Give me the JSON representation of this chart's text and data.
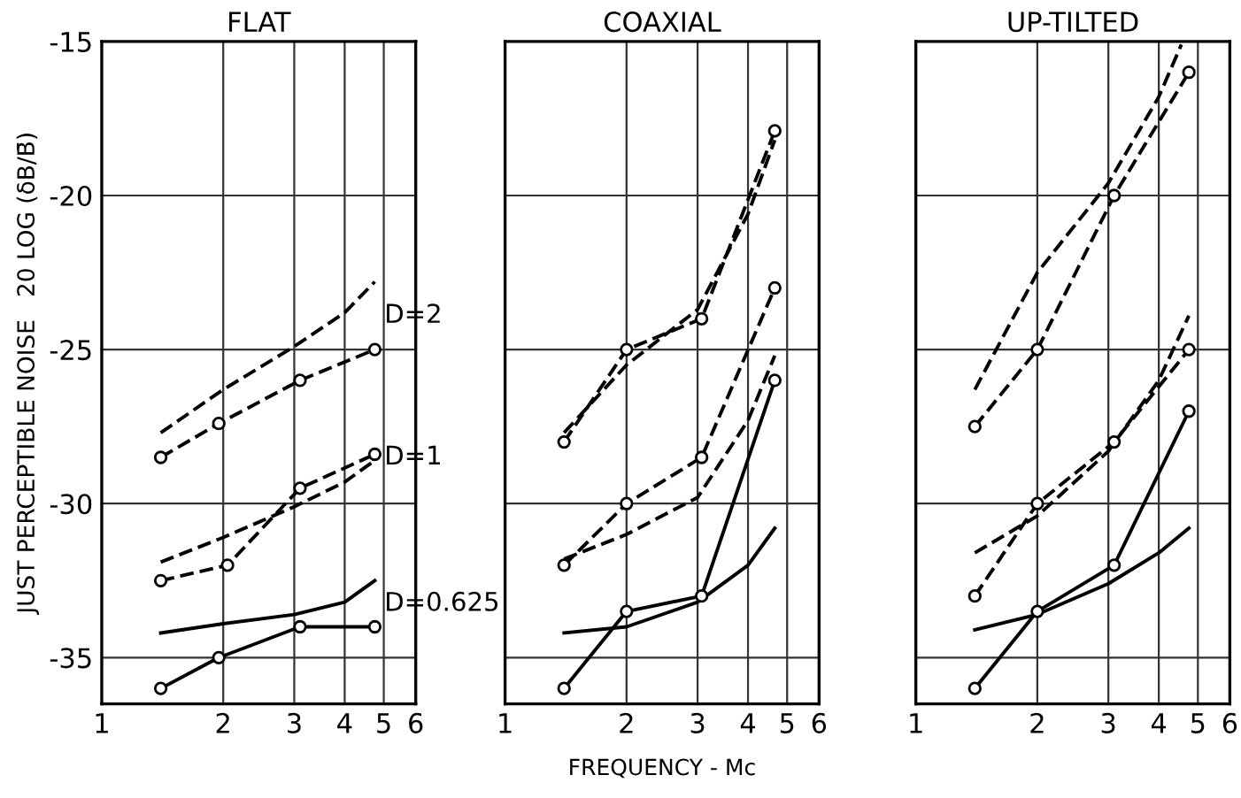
{
  "chart_data": [
    {
      "type": "line",
      "title": "FLAT",
      "ylabel": "JUST PERCEPTIBLE NOISE   20 LOG (δB/B̄)",
      "log": "x",
      "grid": true,
      "xlim": [
        1,
        6
      ],
      "xticks": [
        1,
        2,
        3,
        4,
        5,
        6
      ],
      "ylim": [
        -36.5,
        -15
      ],
      "yticks": [
        -35,
        -30,
        -25,
        -20,
        -15
      ],
      "annotations": [
        "D=2",
        "D=1",
        "D=0.625"
      ],
      "series": [
        {
          "color": "#000000",
          "line_style": "dashed",
          "marker": "none",
          "x": [
            1.4,
            2,
            3,
            4,
            4.75
          ],
          "values": [
            -27.7,
            -26.3,
            -24.9,
            -23.8,
            -22.8
          ]
        },
        {
          "color": "#000000",
          "line_style": "dashed",
          "marker": "circle",
          "x": [
            1.4,
            1.95,
            3.1,
            4.75
          ],
          "values": [
            -28.5,
            -27.4,
            -26,
            -25
          ]
        },
        {
          "color": "#000000",
          "line_style": "dashed",
          "marker": "none",
          "x": [
            1.4,
            2,
            3,
            4,
            4.75
          ],
          "values": [
            -31.9,
            -31.1,
            -30.1,
            -29.3,
            -28.6
          ]
        },
        {
          "color": "#000000",
          "line_style": "dashed",
          "marker": "circle",
          "x": [
            1.4,
            2.05,
            3.1,
            4.75
          ],
          "values": [
            -32.5,
            -32,
            -29.5,
            -28.4
          ]
        },
        {
          "color": "#000000",
          "line_style": "solid",
          "marker": "none",
          "x": [
            1.4,
            2,
            3,
            4,
            4.75
          ],
          "values": [
            -34.2,
            -33.9,
            -33.6,
            -33.2,
            -32.5
          ]
        },
        {
          "color": "#000000",
          "line_style": "solid",
          "marker": "circle",
          "x": [
            1.4,
            1.95,
            3.1,
            4.75
          ],
          "values": [
            -36,
            -35,
            -34,
            -34
          ]
        }
      ]
    },
    {
      "type": "line",
      "title": "COAXIAL",
      "xlabel": "FREQUENCY - Mc",
      "log": "x",
      "grid": true,
      "tick_labels": "x",
      "xlim": [
        1,
        6
      ],
      "xticks": [
        1,
        2,
        3,
        4,
        5,
        6
      ],
      "ylim": [
        -36.5,
        -15
      ],
      "yticks": [
        -35,
        -30,
        -25,
        -20,
        -15
      ],
      "series": [
        {
          "color": "#000000",
          "line_style": "dashed",
          "marker": "none",
          "x": [
            1.4,
            2,
            3,
            4,
            4.66
          ],
          "values": [
            -27.7,
            -25.5,
            -23.7,
            -20.6,
            -18.2
          ]
        },
        {
          "color": "#000000",
          "line_style": "dashed",
          "marker": "circle",
          "x": [
            1.4,
            2,
            3.07,
            4.66
          ],
          "values": [
            -28,
            -25,
            -24,
            -17.9
          ]
        },
        {
          "color": "#000000",
          "line_style": "dashed",
          "marker": "none",
          "x": [
            1.4,
            2,
            3,
            4,
            4.66
          ],
          "values": [
            -31.8,
            -31,
            -29.8,
            -27.3,
            -25.2
          ]
        },
        {
          "color": "#000000",
          "line_style": "dashed",
          "marker": "circle",
          "x": [
            1.4,
            2,
            3.07,
            4.66
          ],
          "values": [
            -32,
            -30,
            -28.5,
            -23
          ]
        },
        {
          "color": "#000000",
          "line_style": "solid",
          "marker": "none",
          "x": [
            1.4,
            2,
            3,
            4,
            4.66
          ],
          "values": [
            -34.2,
            -34,
            -33.2,
            -32,
            -30.8
          ]
        },
        {
          "color": "#000000",
          "line_style": "solid",
          "marker": "circle",
          "x": [
            1.4,
            2,
            3.07,
            4.66
          ],
          "values": [
            -36,
            -33.5,
            -33,
            -26
          ]
        }
      ]
    },
    {
      "type": "line",
      "title": "UP-TILTED",
      "log": "x",
      "grid": true,
      "tick_labels": "x",
      "xlim": [
        1,
        6
      ],
      "xticks": [
        1,
        2,
        3,
        4,
        5,
        6
      ],
      "ylim": [
        -36.5,
        -15
      ],
      "yticks": [
        -35,
        -30,
        -25,
        -20,
        -15
      ],
      "series": [
        {
          "color": "#000000",
          "line_style": "dashed",
          "marker": "none",
          "x": [
            1.4,
            2,
            3,
            4,
            4.55
          ],
          "values": [
            -26.3,
            -22.5,
            -19.6,
            -16.8,
            -15.1
          ]
        },
        {
          "color": "#000000",
          "line_style": "dashed",
          "marker": "circle",
          "x": [
            1.4,
            2,
            3.1,
            4.75
          ],
          "values": [
            -27.5,
            -25,
            -20,
            -16
          ]
        },
        {
          "color": "#000000",
          "line_style": "dashed",
          "marker": "none",
          "x": [
            1.4,
            2,
            3,
            4,
            4.75
          ],
          "values": [
            -31.6,
            -30.4,
            -28.3,
            -26,
            -23.9
          ]
        },
        {
          "color": "#000000",
          "line_style": "dashed",
          "marker": "circle",
          "x": [
            1.4,
            2,
            3.1,
            4.75
          ],
          "values": [
            -33,
            -30,
            -28,
            -25
          ]
        },
        {
          "color": "#000000",
          "line_style": "solid",
          "marker": "none",
          "x": [
            1.4,
            2,
            3,
            4,
            4.75
          ],
          "values": [
            -34.1,
            -33.6,
            -32.6,
            -31.6,
            -30.8
          ]
        },
        {
          "color": "#000000",
          "line_style": "solid",
          "marker": "circle",
          "x": [
            1.4,
            2,
            3.1,
            4.75
          ],
          "values": [
            -36,
            -33.5,
            -32,
            -27
          ]
        }
      ]
    }
  ]
}
